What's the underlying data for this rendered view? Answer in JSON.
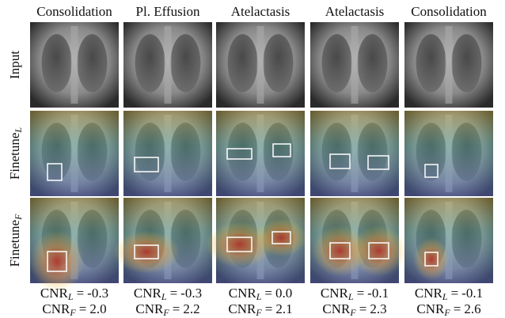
{
  "columns": [
    {
      "title": "Consolidation",
      "cnr_l": "-0.3",
      "cnr_f": "2.0"
    },
    {
      "title": "Pl. Effusion",
      "cnr_l": "-0.3",
      "cnr_f": "2.2"
    },
    {
      "title": "Atelactasis",
      "cnr_l": "0.0",
      "cnr_f": "2.1"
    },
    {
      "title": "Atelactasis",
      "cnr_l": "-0.1",
      "cnr_f": "2.3"
    },
    {
      "title": "Consolidation",
      "cnr_l": "-0.1",
      "cnr_f": "2.6"
    }
  ],
  "rows": [
    {
      "label": "Input"
    },
    {
      "label": "Finetune",
      "subscript": "L"
    },
    {
      "label": "Finetune",
      "subscript": "F"
    }
  ],
  "metric": {
    "name": "CNR",
    "relation": "=",
    "subscript_l": "L",
    "subscript_f": "F"
  }
}
